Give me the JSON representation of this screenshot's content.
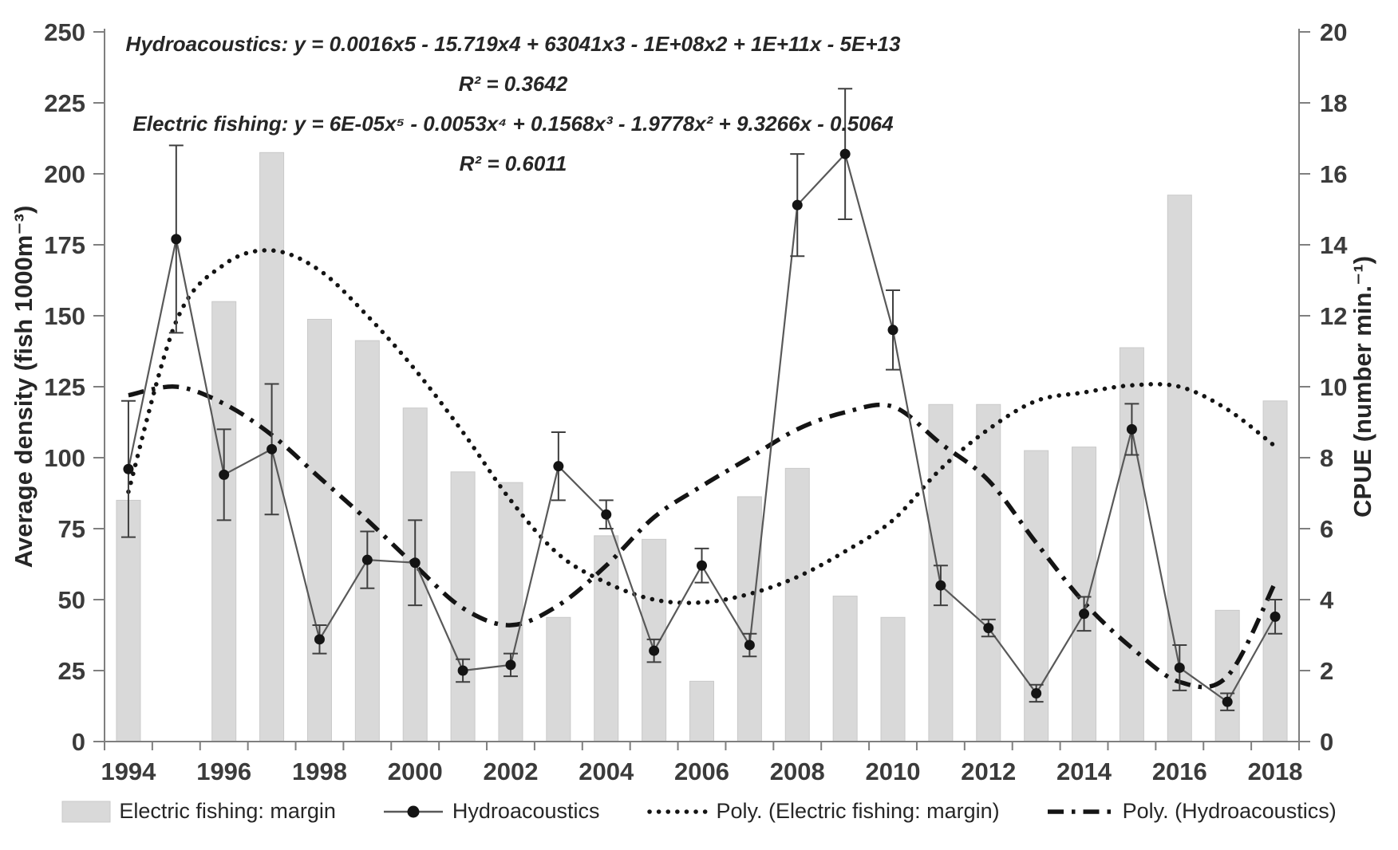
{
  "figure": {
    "equations": {
      "hydro": "Hydroacoustics: y = 0.0016x5 - 15.719x4 + 63041x3 - 1E+08x2 + 1E+11x - 5E+13",
      "hydro_r2": "R² = 0.3642",
      "electric": "Electric fishing: y = 6E-05x⁵ - 0.0053x⁴ + 0.1568x³ - 1.9778x² + 9.3266x - 0.5064",
      "electric_r2": "R² = 0.6011"
    },
    "legend": {
      "electric": "Electric fishing: margin",
      "hydro": "Hydroacoustics",
      "poly_electric": "Poly. (Electric fishing: margin)",
      "poly_hydro": "Poly. (Hydroacoustics)"
    }
  },
  "chart_data": {
    "type": "combo",
    "title": "",
    "categories": [
      1994,
      1995,
      1996,
      1997,
      1998,
      1999,
      2000,
      2001,
      2002,
      2003,
      2004,
      2005,
      2006,
      2007,
      2008,
      2009,
      2010,
      2011,
      2012,
      2013,
      2014,
      2015,
      2016,
      2017,
      2018
    ],
    "x_labeled_every": 2,
    "left_axis": {
      "label": "Average density (fish 1000m⁻³)",
      "min": 0,
      "max": 250,
      "tick_step": 25
    },
    "right_axis": {
      "label": "CPUE (number min.⁻¹)",
      "min": 0,
      "max": 20,
      "tick_step": 2
    },
    "grid": false,
    "legend_position": "bottom",
    "series": [
      {
        "name": "Electric fishing: margin",
        "type": "bar",
        "axis": "right",
        "values": [
          6.8,
          null,
          12.4,
          16.6,
          11.9,
          11.3,
          9.4,
          7.6,
          7.3,
          3.5,
          5.8,
          5.7,
          1.7,
          6.9,
          7.7,
          4.1,
          3.5,
          9.5,
          9.5,
          8.2,
          8.3,
          11.1,
          15.4,
          3.7,
          9.6
        ]
      },
      {
        "name": "Hydroacoustics",
        "type": "line",
        "axis": "left",
        "values": [
          96,
          177,
          94,
          103,
          36,
          64,
          63,
          25,
          27,
          97,
          80,
          32,
          62,
          34,
          189,
          207,
          145,
          55,
          40,
          17,
          45,
          110,
          26,
          14,
          44
        ],
        "errors": [
          24,
          33,
          16,
          23,
          5,
          10,
          15,
          4,
          4,
          12,
          5,
          4,
          6,
          4,
          18,
          23,
          14,
          7,
          3,
          3,
          6,
          9,
          8,
          3,
          6
        ]
      },
      {
        "name": "Poly. (Electric fishing: margin)",
        "type": "curve-dotted",
        "axis": "left",
        "values": [
          88,
          148,
          168,
          173,
          166,
          150,
          131,
          109,
          85,
          66,
          56,
          50,
          49,
          52,
          58,
          67,
          78,
          96,
          110,
          120,
          123,
          125.5,
          125,
          117,
          104
        ]
      },
      {
        "name": "Poly. (Hydroacoustics)",
        "type": "curve-dashdot",
        "axis": "left",
        "values": [
          122,
          125,
          119,
          108,
          93,
          78,
          62,
          47,
          41,
          48,
          62,
          79,
          90,
          100,
          110,
          116,
          118,
          105,
          92,
          70,
          49,
          33,
          21,
          23,
          56
        ]
      }
    ],
    "colors": {
      "bar": "#d9d9d9",
      "bar_border": "#c9c9c9",
      "line": "#595959",
      "marker": "#141414",
      "error": "#3f3f3f",
      "curve": "#141414",
      "axis": "#7f7f7f",
      "text": "#3b3b3b"
    }
  }
}
